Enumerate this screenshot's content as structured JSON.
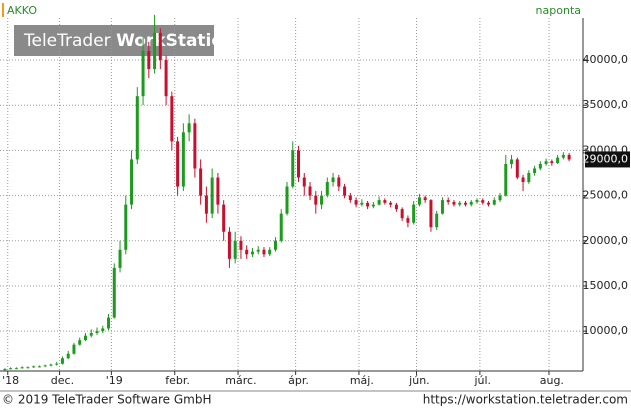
{
  "chart_data": {
    "type": "candlestick",
    "title": "AKKO",
    "subtitle": "naponta",
    "watermark": [
      "TeleTrader",
      "WorkStation"
    ],
    "footer_left": "© 2019 TeleTrader Software GmbH",
    "footer_right": "https://workstation.teletrader.com",
    "up_color": "#1e9a1e",
    "down_color": "#c8102e",
    "grid": true,
    "categories": [
      null,
      "'18",
      null,
      null,
      null,
      null,
      null,
      null,
      null,
      null,
      "dec.",
      null,
      null,
      null,
      null,
      null,
      null,
      null,
      null,
      "'19",
      null,
      null,
      null,
      null,
      null,
      null,
      null,
      null,
      null,
      null,
      "febr.",
      null,
      null,
      null,
      null,
      null,
      null,
      null,
      null,
      null,
      null,
      "márc.",
      null,
      null,
      null,
      null,
      null,
      null,
      null,
      null,
      null,
      "ápr.",
      null,
      null,
      null,
      null,
      null,
      null,
      null,
      null,
      null,
      null,
      "máj.",
      null,
      null,
      null,
      null,
      null,
      null,
      null,
      null,
      null,
      "jún.",
      null,
      null,
      null,
      null,
      null,
      null,
      null,
      null,
      null,
      null,
      "júl.",
      null,
      null,
      null,
      null,
      null,
      null,
      null,
      null,
      null,
      null,
      null,
      "aug.",
      null,
      null,
      null
    ],
    "open": [
      5700,
      5800,
      5900,
      5900,
      6000,
      6000,
      6100,
      6100,
      6200,
      6300,
      6400,
      7000,
      7500,
      8500,
      9000,
      9500,
      9800,
      10000,
      10300,
      11500,
      17000,
      19000,
      24000,
      29000,
      36000,
      41000,
      39000,
      43000,
      40000,
      36000,
      31000,
      26000,
      32000,
      33000,
      28000,
      25000,
      23000,
      27000,
      24000,
      21000,
      18000,
      20000,
      19000,
      18500,
      18800,
      19000,
      18500,
      19000,
      20000,
      23000,
      26000,
      30000,
      27000,
      26000,
      25000,
      24000,
      25000,
      26500,
      27000,
      26000,
      25000,
      24500,
      24000,
      24200,
      23800,
      24000,
      24500,
      24200,
      24000,
      23500,
      22500,
      22000,
      24000,
      24800,
      24500,
      21500,
      23000,
      24500,
      24300,
      24000,
      24200,
      24000,
      24300,
      24500,
      24200,
      24000,
      24500,
      25000,
      28500,
      29000,
      27000,
      26500,
      27500,
      28000,
      28500,
      28800,
      28600,
      29200,
      29500
    ],
    "high": [
      5900,
      6000,
      6000,
      6100,
      6100,
      6200,
      6200,
      6300,
      6400,
      6600,
      7200,
      7800,
      8700,
      9300,
      9800,
      10200,
      10400,
      10600,
      11900,
      17500,
      20000,
      25000,
      30000,
      37000,
      42500,
      42000,
      45000,
      43500,
      40500,
      36500,
      31500,
      33000,
      34000,
      33500,
      29000,
      26000,
      28000,
      27500,
      24500,
      21500,
      21000,
      20500,
      19500,
      19200,
      19400,
      19300,
      19300,
      20400,
      23500,
      26500,
      31000,
      30500,
      27500,
      26500,
      25500,
      25500,
      27000,
      27500,
      27300,
      26300,
      25300,
      24800,
      24600,
      24400,
      24300,
      24900,
      24700,
      24400,
      24200,
      23700,
      22800,
      24400,
      25200,
      25000,
      24600,
      23300,
      24800,
      24800,
      24500,
      24400,
      24400,
      24500,
      24700,
      24700,
      24400,
      24800,
      25300,
      29500,
      29500,
      29200,
      27300,
      27800,
      28300,
      28800,
      29100,
      29000,
      29500,
      29800,
      29700
    ],
    "low": [
      5650,
      5750,
      5800,
      5850,
      5900,
      5950,
      6000,
      6050,
      6100,
      6200,
      6300,
      6900,
      7400,
      8400,
      8900,
      9300,
      9600,
      9800,
      10100,
      11400,
      16500,
      18500,
      23500,
      28500,
      35000,
      38000,
      38500,
      39000,
      35000,
      30000,
      25000,
      25500,
      31000,
      27000,
      24000,
      22000,
      22500,
      23000,
      20000,
      17000,
      17500,
      18000,
      18000,
      18200,
      18500,
      18200,
      18300,
      18800,
      19800,
      22800,
      25800,
      26500,
      25000,
      24500,
      23000,
      23500,
      24800,
      26000,
      25500,
      24700,
      24200,
      23700,
      23800,
      23500,
      23600,
      23900,
      24000,
      23700,
      23200,
      22200,
      21500,
      21800,
      23800,
      24200,
      21000,
      21200,
      22900,
      24000,
      23800,
      23800,
      23800,
      23800,
      24100,
      24000,
      23800,
      23900,
      24300,
      24900,
      28000,
      26800,
      25500,
      26300,
      27200,
      27800,
      28300,
      28300,
      28500,
      29000,
      28800
    ],
    "close": [
      5800,
      5900,
      5900,
      6000,
      6000,
      6100,
      6100,
      6200,
      6300,
      6400,
      7000,
      7500,
      8500,
      9000,
      9500,
      9800,
      10000,
      10300,
      11500,
      17000,
      19000,
      24000,
      29000,
      36000,
      41000,
      39000,
      43000,
      40000,
      36000,
      31000,
      26000,
      32000,
      33000,
      28000,
      25000,
      23000,
      27000,
      24000,
      21000,
      18000,
      20000,
      19000,
      18500,
      18800,
      19000,
      18500,
      19000,
      20000,
      23000,
      26000,
      30000,
      27000,
      26000,
      25000,
      24000,
      25000,
      26500,
      27000,
      26000,
      25000,
      24500,
      24000,
      24200,
      23800,
      24000,
      24500,
      24200,
      24000,
      23500,
      22500,
      22000,
      24000,
      24800,
      24500,
      21500,
      23000,
      24500,
      24300,
      24000,
      24200,
      24000,
      24300,
      24500,
      24200,
      24000,
      24500,
      25000,
      28500,
      29000,
      27000,
      26500,
      27500,
      28000,
      28500,
      28800,
      28600,
      29200,
      29500,
      29000
    ],
    "last_price": {
      "value": 29000,
      "label": "29000,0"
    },
    "ylim": [
      5700,
      44650
    ],
    "yticks": [
      {
        "value": 10000,
        "label": "10000,0"
      },
      {
        "value": 15000,
        "label": "15000,0"
      },
      {
        "value": 20000,
        "label": "20000,0"
      },
      {
        "value": 25000,
        "label": "25000,0"
      },
      {
        "value": 30000,
        "label": "30000,0"
      },
      {
        "value": 35000,
        "label": "35000,0"
      },
      {
        "value": 40000,
        "label": "40000,0"
      }
    ]
  }
}
